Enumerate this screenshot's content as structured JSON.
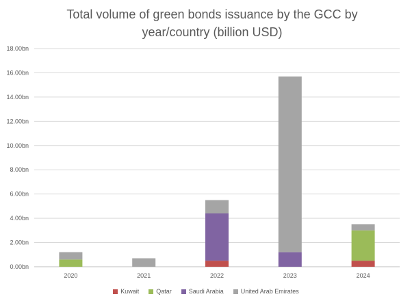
{
  "chart_data": {
    "type": "bar",
    "stacked": true,
    "title_lines": [
      "Total volume of green bonds issuance by the GCC by",
      "year/country (billion USD)"
    ],
    "categories": [
      "2020",
      "2021",
      "2022",
      "2023",
      "2024"
    ],
    "y_ticks": [
      "0.00bn",
      "2.00bn",
      "4.00bn",
      "6.00bn",
      "8.00bn",
      "10.00bn",
      "12.00bn",
      "14.00bn",
      "16.00bn",
      "18.00bn"
    ],
    "ylim": [
      0,
      18
    ],
    "grid": true,
    "legend_position": "bottom",
    "series": [
      {
        "name": "Kuwait",
        "color": "#c0504d",
        "values": [
          0,
          0,
          0.5,
          0,
          0.5
        ]
      },
      {
        "name": "Qatar",
        "color": "#9bbb59",
        "values": [
          0.6,
          0,
          0,
          0,
          2.5
        ]
      },
      {
        "name": "Saudi Arabia",
        "color": "#8064a2",
        "values": [
          0,
          0,
          3.9,
          1.2,
          0
        ]
      },
      {
        "name": "United Arab Emirates",
        "color": "#a5a5a5",
        "values": [
          0.6,
          0.7,
          1.1,
          14.5,
          0.5
        ]
      }
    ]
  }
}
